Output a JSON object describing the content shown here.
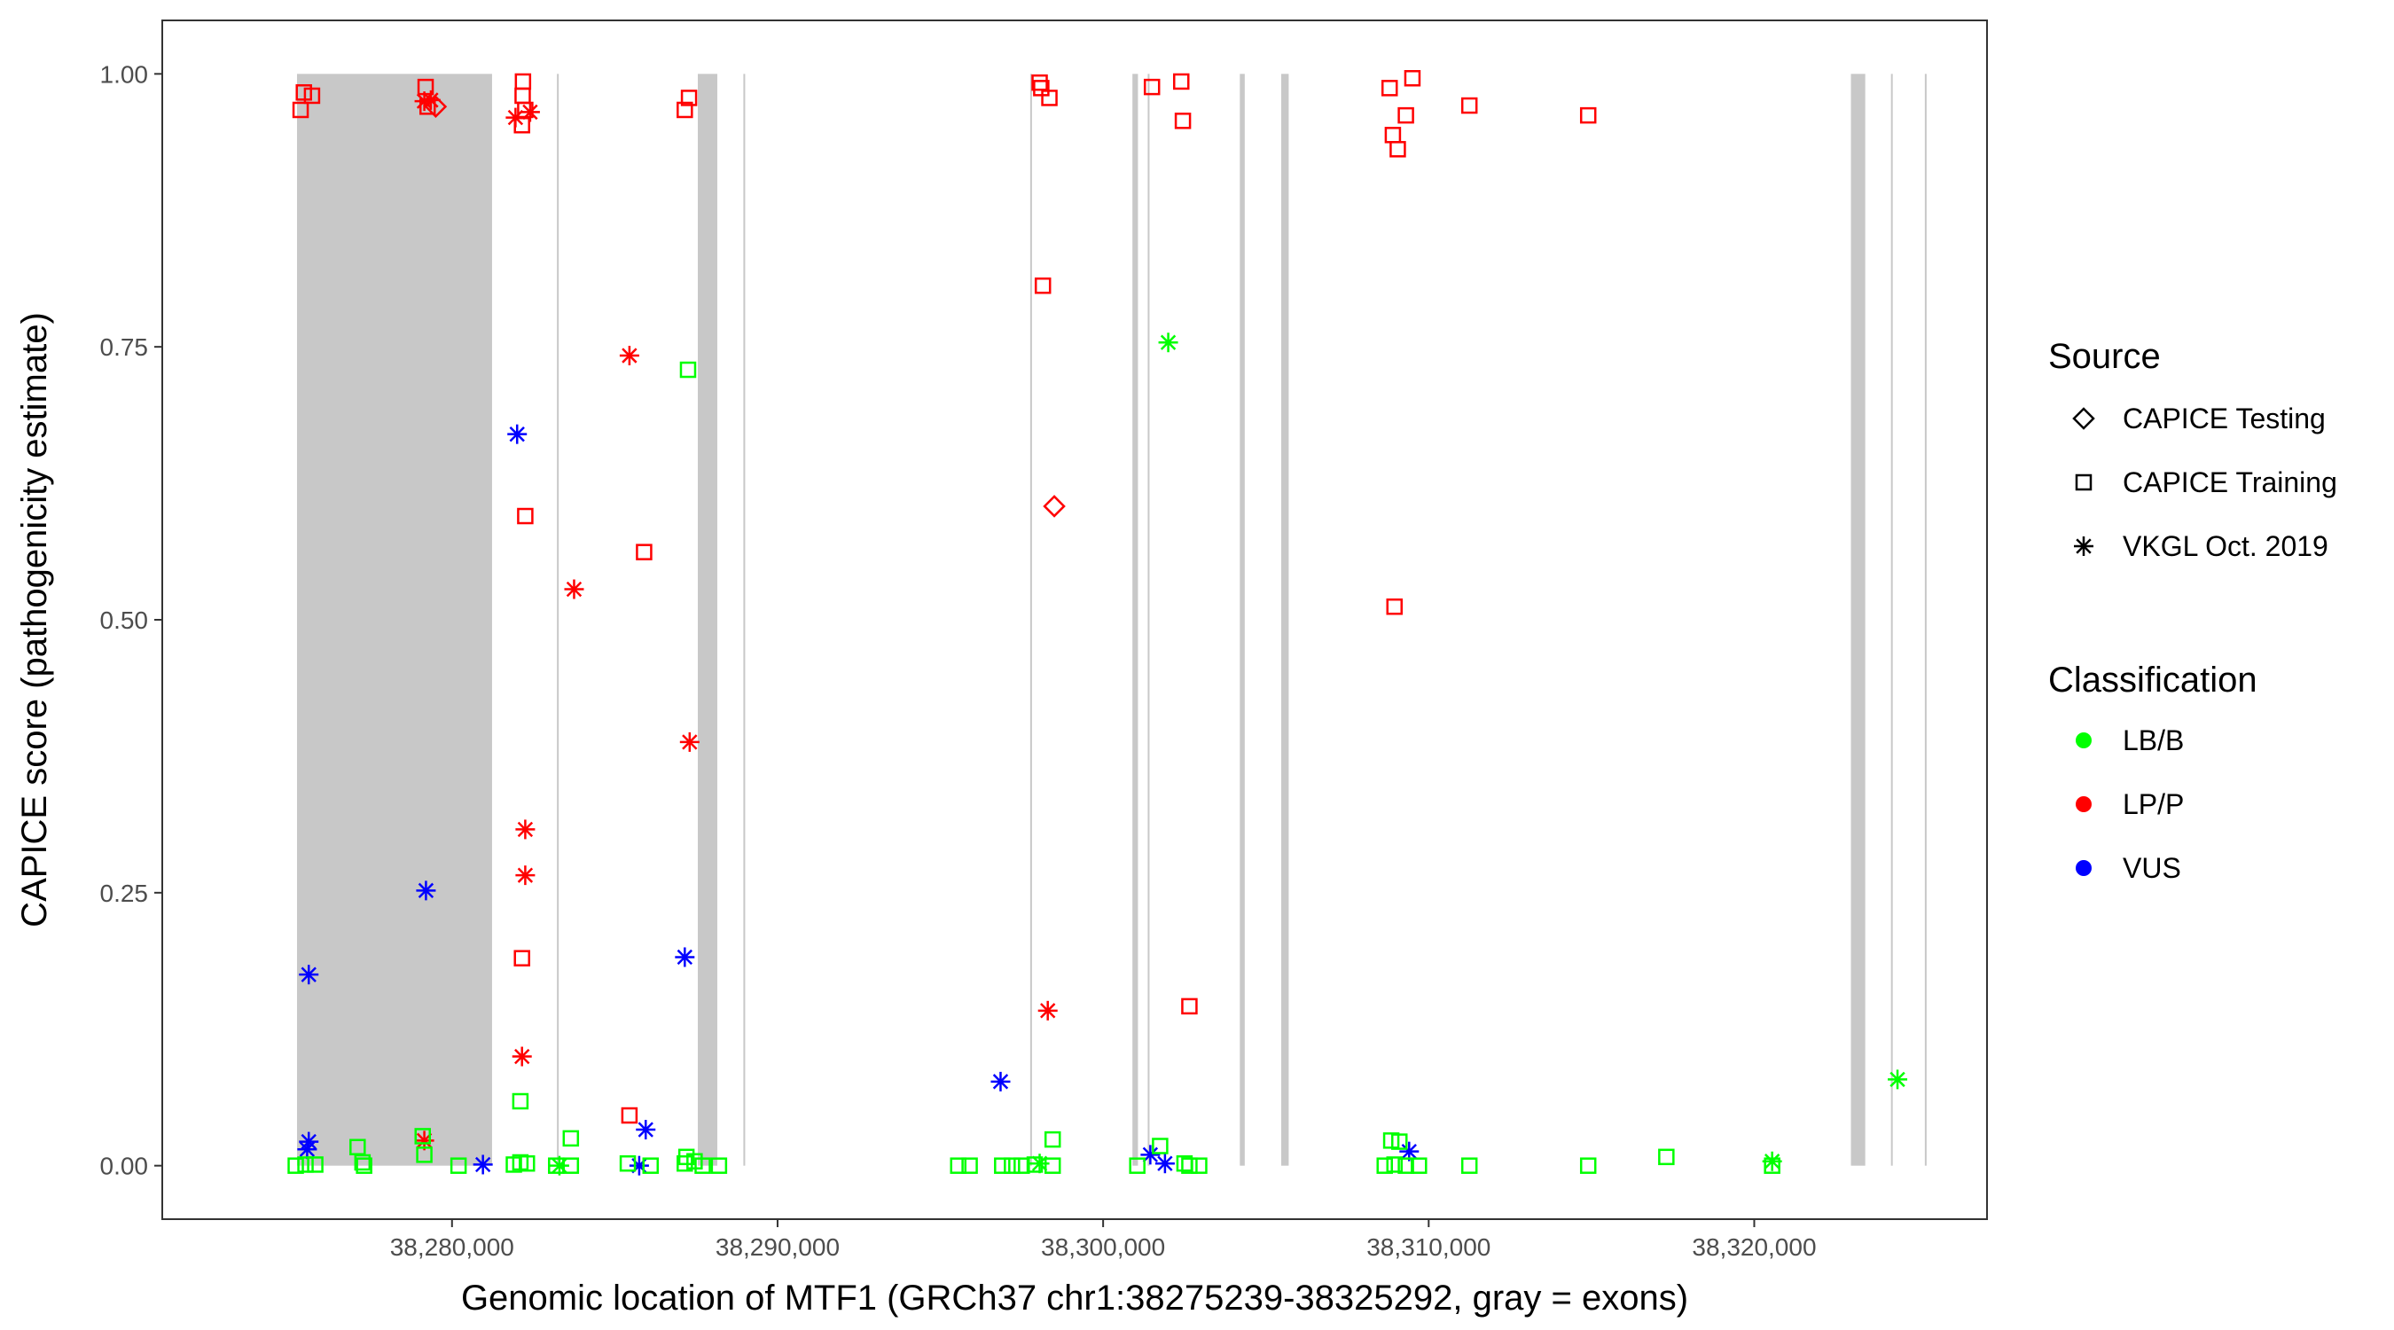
{
  "chart_data": {
    "type": "scatter",
    "title": "",
    "xlabel": "Genomic location of MTF1 (GRCh37 chr1:38275239-38325292, gray = exons)",
    "ylabel": "CAPICE score (pathogenicity estimate)",
    "xlim": [
      38271100,
      38327150
    ],
    "ylim": [
      -0.049,
      1.049
    ],
    "x_ticks": [
      38280000,
      38290000,
      38300000,
      38310000,
      38320000
    ],
    "x_tick_labels": [
      "38,280,000",
      "38,290,000",
      "38,300,000",
      "38,310,000",
      "38,320,000"
    ],
    "y_ticks": [
      0,
      0.25,
      0.5,
      0.75,
      1.0
    ],
    "y_tick_labels": [
      "0.00",
      "0.25",
      "0.50",
      "0.75",
      "1.00"
    ],
    "grid": false,
    "exons": [
      [
        38275239,
        38281230
      ],
      [
        38283224,
        38283276
      ],
      [
        38287550,
        38288150
      ],
      [
        38288950,
        38289000
      ],
      [
        38297760,
        38297800
      ],
      [
        38300900,
        38301070
      ],
      [
        38301370,
        38301420
      ],
      [
        38304200,
        38304350
      ],
      [
        38305470,
        38305700
      ],
      [
        38322970,
        38323410
      ],
      [
        38324200,
        38324250
      ],
      [
        38325240,
        38325292
      ]
    ],
    "legend_source": {
      "title": "Source",
      "items": [
        {
          "label": "CAPICE Testing",
          "shape": "diamond"
        },
        {
          "label": "CAPICE Training",
          "shape": "square"
        },
        {
          "label": "VKGL Oct. 2019",
          "shape": "asterisk"
        }
      ]
    },
    "legend_classification": {
      "title": "Classification",
      "items": [
        {
          "label": "LB/B",
          "color": "#00ff00"
        },
        {
          "label": "LP/P",
          "color": "#ff0000"
        },
        {
          "label": "VUS",
          "color": "#0000ff"
        }
      ]
    },
    "legend_position": "right",
    "points": [
      {
        "x": 38275450,
        "y": 0.983,
        "source": "square",
        "cls": "LP/P"
      },
      {
        "x": 38275350,
        "y": 0.967,
        "source": "square",
        "cls": "LP/P"
      },
      {
        "x": 38275700,
        "y": 0.98,
        "source": "square",
        "cls": "LP/P"
      },
      {
        "x": 38279190,
        "y": 0.988,
        "source": "square",
        "cls": "LP/P"
      },
      {
        "x": 38279250,
        "y": 0.97,
        "source": "square",
        "cls": "LP/P"
      },
      {
        "x": 38279150,
        "y": 0.975,
        "source": "asterisk",
        "cls": "LP/P"
      },
      {
        "x": 38279350,
        "y": 0.976,
        "source": "asterisk",
        "cls": "LP/P"
      },
      {
        "x": 38279500,
        "y": 0.97,
        "source": "diamond",
        "cls": "LP/P"
      },
      {
        "x": 38282180,
        "y": 0.993,
        "source": "square",
        "cls": "LP/P"
      },
      {
        "x": 38282170,
        "y": 0.98,
        "source": "square",
        "cls": "LP/P"
      },
      {
        "x": 38282250,
        "y": 0.967,
        "source": "square",
        "cls": "LP/P"
      },
      {
        "x": 38282150,
        "y": 0.953,
        "source": "square",
        "cls": "LP/P"
      },
      {
        "x": 38281950,
        "y": 0.96,
        "source": "asterisk",
        "cls": "LP/P"
      },
      {
        "x": 38282400,
        "y": 0.965,
        "source": "asterisk",
        "cls": "LP/P"
      },
      {
        "x": 38287280,
        "y": 0.978,
        "source": "square",
        "cls": "LP/P"
      },
      {
        "x": 38287150,
        "y": 0.967,
        "source": "square",
        "cls": "LP/P"
      },
      {
        "x": 38282250,
        "y": 0.595,
        "source": "square",
        "cls": "LP/P"
      },
      {
        "x": 38285450,
        "y": 0.742,
        "source": "asterisk",
        "cls": "LP/P"
      },
      {
        "x": 38283750,
        "y": 0.528,
        "source": "asterisk",
        "cls": "LP/P"
      },
      {
        "x": 38285900,
        "y": 0.562,
        "source": "square",
        "cls": "LP/P"
      },
      {
        "x": 38287300,
        "y": 0.388,
        "source": "asterisk",
        "cls": "LP/P"
      },
      {
        "x": 38282250,
        "y": 0.308,
        "source": "asterisk",
        "cls": "LP/P"
      },
      {
        "x": 38282250,
        "y": 0.266,
        "source": "asterisk",
        "cls": "LP/P"
      },
      {
        "x": 38282150,
        "y": 0.19,
        "source": "square",
        "cls": "LP/P"
      },
      {
        "x": 38282150,
        "y": 0.1,
        "source": "asterisk",
        "cls": "LP/P"
      },
      {
        "x": 38285450,
        "y": 0.046,
        "source": "square",
        "cls": "LP/P"
      },
      {
        "x": 38279150,
        "y": 0.023,
        "source": "asterisk",
        "cls": "LP/P"
      },
      {
        "x": 38298050,
        "y": 0.992,
        "source": "square",
        "cls": "LP/P"
      },
      {
        "x": 38298100,
        "y": 0.987,
        "source": "square",
        "cls": "LP/P"
      },
      {
        "x": 38298350,
        "y": 0.978,
        "source": "square",
        "cls": "LP/P"
      },
      {
        "x": 38298150,
        "y": 0.806,
        "source": "square",
        "cls": "LP/P"
      },
      {
        "x": 38298500,
        "y": 0.604,
        "source": "diamond",
        "cls": "LP/P"
      },
      {
        "x": 38298300,
        "y": 0.142,
        "source": "asterisk",
        "cls": "LP/P"
      },
      {
        "x": 38301500,
        "y": 0.988,
        "source": "square",
        "cls": "LP/P"
      },
      {
        "x": 38302400,
        "y": 0.993,
        "source": "square",
        "cls": "LP/P"
      },
      {
        "x": 38302450,
        "y": 0.957,
        "source": "square",
        "cls": "LP/P"
      },
      {
        "x": 38302650,
        "y": 0.146,
        "source": "square",
        "cls": "LP/P"
      },
      {
        "x": 38308800,
        "y": 0.987,
        "source": "square",
        "cls": "LP/P"
      },
      {
        "x": 38309500,
        "y": 0.996,
        "source": "square",
        "cls": "LP/P"
      },
      {
        "x": 38309300,
        "y": 0.962,
        "source": "square",
        "cls": "LP/P"
      },
      {
        "x": 38308900,
        "y": 0.944,
        "source": "square",
        "cls": "LP/P"
      },
      {
        "x": 38309050,
        "y": 0.931,
        "source": "square",
        "cls": "LP/P"
      },
      {
        "x": 38311250,
        "y": 0.971,
        "source": "square",
        "cls": "LP/P"
      },
      {
        "x": 38314900,
        "y": 0.962,
        "source": "square",
        "cls": "LP/P"
      },
      {
        "x": 38308950,
        "y": 0.512,
        "source": "square",
        "cls": "LP/P"
      },
      {
        "x": 38282000,
        "y": 0.67,
        "source": "asterisk",
        "cls": "VUS"
      },
      {
        "x": 38279200,
        "y": 0.252,
        "source": "asterisk",
        "cls": "VUS"
      },
      {
        "x": 38275600,
        "y": 0.175,
        "source": "asterisk",
        "cls": "VUS"
      },
      {
        "x": 38287150,
        "y": 0.191,
        "source": "asterisk",
        "cls": "VUS"
      },
      {
        "x": 38296850,
        "y": 0.077,
        "source": "asterisk",
        "cls": "VUS"
      },
      {
        "x": 38285950,
        "y": 0.033,
        "source": "asterisk",
        "cls": "VUS"
      },
      {
        "x": 38275600,
        "y": 0.022,
        "source": "asterisk",
        "cls": "VUS"
      },
      {
        "x": 38275550,
        "y": 0.015,
        "source": "asterisk",
        "cls": "VUS"
      },
      {
        "x": 38280950,
        "y": 0.001,
        "source": "asterisk",
        "cls": "VUS"
      },
      {
        "x": 38285750,
        "y": 0.0,
        "source": "asterisk",
        "cls": "VUS"
      },
      {
        "x": 38301450,
        "y": 0.01,
        "source": "asterisk",
        "cls": "VUS"
      },
      {
        "x": 38301900,
        "y": 0.002,
        "source": "asterisk",
        "cls": "VUS"
      },
      {
        "x": 38309400,
        "y": 0.013,
        "source": "asterisk",
        "cls": "VUS"
      },
      {
        "x": 38287250,
        "y": 0.729,
        "source": "square",
        "cls": "LB/B"
      },
      {
        "x": 38302000,
        "y": 0.754,
        "source": "asterisk",
        "cls": "LB/B"
      },
      {
        "x": 38324400,
        "y": 0.079,
        "source": "asterisk",
        "cls": "LB/B"
      },
      {
        "x": 38282100,
        "y": 0.059,
        "source": "square",
        "cls": "LB/B"
      },
      {
        "x": 38283650,
        "y": 0.025,
        "source": "square",
        "cls": "LB/B"
      },
      {
        "x": 38298450,
        "y": 0.024,
        "source": "square",
        "cls": "LB/B"
      },
      {
        "x": 38308850,
        "y": 0.023,
        "source": "square",
        "cls": "LB/B"
      },
      {
        "x": 38309100,
        "y": 0.022,
        "source": "square",
        "cls": "LB/B"
      },
      {
        "x": 38301750,
        "y": 0.018,
        "source": "square",
        "cls": "LB/B"
      },
      {
        "x": 38277100,
        "y": 0.017,
        "source": "square",
        "cls": "LB/B"
      },
      {
        "x": 38279100,
        "y": 0.027,
        "source": "square",
        "cls": "LB/B"
      },
      {
        "x": 38279150,
        "y": 0.01,
        "source": "square",
        "cls": "LB/B"
      },
      {
        "x": 38317300,
        "y": 0.008,
        "source": "square",
        "cls": "LB/B"
      },
      {
        "x": 38287200,
        "y": 0.008,
        "source": "square",
        "cls": "LB/B"
      },
      {
        "x": 38320550,
        "y": 0.004,
        "source": "asterisk",
        "cls": "LB/B"
      },
      {
        "x": 38275200,
        "y": 0.0,
        "source": "square",
        "cls": "LB/B"
      },
      {
        "x": 38275500,
        "y": 0.001,
        "source": "square",
        "cls": "LB/B"
      },
      {
        "x": 38275800,
        "y": 0.001,
        "source": "square",
        "cls": "LB/B"
      },
      {
        "x": 38277250,
        "y": 0.003,
        "source": "square",
        "cls": "LB/B"
      },
      {
        "x": 38277300,
        "y": 0.0,
        "source": "square",
        "cls": "LB/B"
      },
      {
        "x": 38280200,
        "y": 0.0,
        "source": "square",
        "cls": "LB/B"
      },
      {
        "x": 38281900,
        "y": 0.001,
        "source": "square",
        "cls": "LB/B"
      },
      {
        "x": 38282100,
        "y": 0.003,
        "source": "square",
        "cls": "LB/B"
      },
      {
        "x": 38282300,
        "y": 0.002,
        "source": "square",
        "cls": "LB/B"
      },
      {
        "x": 38283200,
        "y": 0.0,
        "source": "square",
        "cls": "LB/B"
      },
      {
        "x": 38283300,
        "y": 0.0,
        "source": "asterisk",
        "cls": "LB/B"
      },
      {
        "x": 38283650,
        "y": 0.0,
        "source": "square",
        "cls": "LB/B"
      },
      {
        "x": 38285400,
        "y": 0.002,
        "source": "square",
        "cls": "LB/B"
      },
      {
        "x": 38286100,
        "y": 0.0,
        "source": "square",
        "cls": "LB/B"
      },
      {
        "x": 38287150,
        "y": 0.002,
        "source": "square",
        "cls": "LB/B"
      },
      {
        "x": 38287450,
        "y": 0.004,
        "source": "square",
        "cls": "LB/B"
      },
      {
        "x": 38287700,
        "y": 0.0,
        "source": "square",
        "cls": "LB/B"
      },
      {
        "x": 38288200,
        "y": 0.0,
        "source": "square",
        "cls": "LB/B"
      },
      {
        "x": 38295550,
        "y": 0.0,
        "source": "square",
        "cls": "LB/B"
      },
      {
        "x": 38295900,
        "y": 0.0,
        "source": "square",
        "cls": "LB/B"
      },
      {
        "x": 38296900,
        "y": 0.0,
        "source": "square",
        "cls": "LB/B"
      },
      {
        "x": 38297200,
        "y": 0.0,
        "source": "square",
        "cls": "LB/B"
      },
      {
        "x": 38297500,
        "y": 0.0,
        "source": "square",
        "cls": "LB/B"
      },
      {
        "x": 38297900,
        "y": 0.001,
        "source": "square",
        "cls": "LB/B"
      },
      {
        "x": 38298050,
        "y": 0.002,
        "source": "asterisk",
        "cls": "LB/B"
      },
      {
        "x": 38298450,
        "y": 0.0,
        "source": "square",
        "cls": "LB/B"
      },
      {
        "x": 38301050,
        "y": 0.0,
        "source": "square",
        "cls": "LB/B"
      },
      {
        "x": 38302500,
        "y": 0.002,
        "source": "square",
        "cls": "LB/B"
      },
      {
        "x": 38302650,
        "y": 0.0,
        "source": "square",
        "cls": "LB/B"
      },
      {
        "x": 38302950,
        "y": 0.0,
        "source": "square",
        "cls": "LB/B"
      },
      {
        "x": 38308650,
        "y": 0.0,
        "source": "square",
        "cls": "LB/B"
      },
      {
        "x": 38308950,
        "y": 0.001,
        "source": "square",
        "cls": "LB/B"
      },
      {
        "x": 38309300,
        "y": 0.0,
        "source": "square",
        "cls": "LB/B"
      },
      {
        "x": 38309700,
        "y": 0.0,
        "source": "square",
        "cls": "LB/B"
      },
      {
        "x": 38311250,
        "y": 0.0,
        "source": "square",
        "cls": "LB/B"
      },
      {
        "x": 38314900,
        "y": 0.0,
        "source": "square",
        "cls": "LB/B"
      },
      {
        "x": 38320550,
        "y": 0.0,
        "source": "square",
        "cls": "LB/B"
      }
    ]
  }
}
